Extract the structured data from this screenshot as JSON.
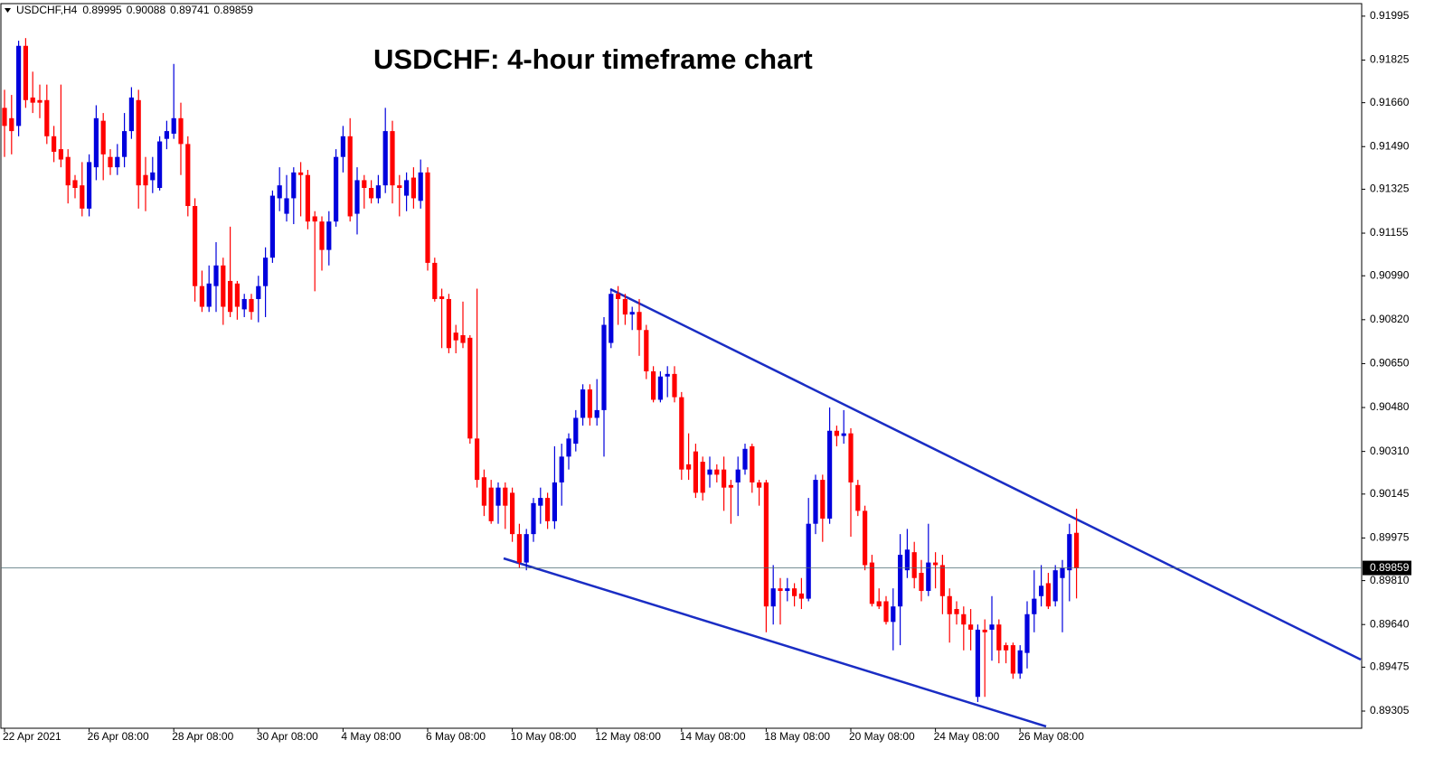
{
  "chart_data": {
    "type": "candlestick",
    "title": "USDCHF: 4-hour timeframe chart",
    "symbol": "USDCHF,H4",
    "up_color": "#0000dd",
    "down_color": "#ff0000",
    "ylim": [
      0.89242,
      0.9204
    ],
    "yticks": [
      0.91995,
      0.91825,
      {
        "value": 0.9166,
        "label": "0.91660"
      },
      {
        "value": 0.9149,
        "label": "0.91490"
      },
      0.91325,
      0.91155,
      {
        "value": 0.9099,
        "label": "0.90990"
      },
      {
        "value": 0.9082,
        "label": "0.90820"
      },
      {
        "value": 0.9065,
        "label": "0.90650"
      },
      {
        "value": 0.9048,
        "label": "0.90480"
      },
      {
        "value": 0.9031,
        "label": "0.90310"
      },
      0.90145,
      0.89975,
      {
        "value": 0.8981,
        "label": "0.89810"
      },
      {
        "value": 0.8964,
        "label": "0.89640"
      },
      0.89475,
      0.89305
    ],
    "categories": [
      "22 Apr 2021",
      null,
      null,
      null,
      null,
      null,
      null,
      null,
      null,
      null,
      null,
      null,
      "26 Apr 08:00",
      null,
      null,
      null,
      null,
      null,
      null,
      null,
      null,
      null,
      null,
      null,
      "28 Apr 08:00",
      null,
      null,
      null,
      null,
      null,
      null,
      null,
      null,
      null,
      null,
      null,
      "30 Apr 08:00",
      null,
      null,
      null,
      null,
      null,
      null,
      null,
      null,
      null,
      null,
      null,
      "4 May 08:00",
      null,
      null,
      null,
      null,
      null,
      null,
      null,
      null,
      null,
      null,
      null,
      "6 May 08:00",
      null,
      null,
      null,
      null,
      null,
      null,
      null,
      null,
      null,
      null,
      null,
      "10 May 08:00",
      null,
      null,
      null,
      null,
      null,
      null,
      null,
      null,
      null,
      null,
      null,
      "12 May 08:00",
      null,
      null,
      null,
      null,
      null,
      null,
      null,
      null,
      null,
      null,
      null,
      "14 May 08:00",
      null,
      null,
      null,
      null,
      null,
      null,
      null,
      null,
      null,
      null,
      null,
      "18 May 08:00",
      null,
      null,
      null,
      null,
      null,
      null,
      null,
      null,
      null,
      null,
      null,
      "20 May 08:00",
      null,
      null,
      null,
      null,
      null,
      null,
      null,
      null,
      null,
      null,
      null,
      "24 May 08:00",
      null,
      null,
      null,
      null,
      null,
      null,
      null,
      null,
      null,
      null,
      null,
      "26 May 08:00",
      null,
      null,
      null,
      null,
      null,
      null,
      null,
      null
    ],
    "ohlc": [
      [
        0.9164,
        0.9171,
        0.9145,
        0.9157
      ],
      [
        0.916,
        0.9169,
        0.9146,
        0.9155
      ],
      [
        0.9157,
        0.919,
        0.9153,
        0.9188
      ],
      [
        0.9188,
        0.9191,
        0.9164,
        0.9167
      ],
      [
        0.9168,
        0.9178,
        0.9162,
        0.9166
      ],
      [
        0.9167,
        0.9173,
        0.916,
        0.9166
      ],
      [
        0.9167,
        0.9173,
        0.915,
        0.9153
      ],
      [
        0.9153,
        0.9157,
        0.9143,
        0.9147
      ],
      [
        0.9148,
        0.9173,
        0.9141,
        0.9144
      ],
      [
        0.9145,
        0.9148,
        0.9127,
        0.9134
      ],
      [
        0.9136,
        0.9138,
        0.9129,
        0.9133
      ],
      [
        0.9134,
        0.9143,
        0.9122,
        0.9125
      ],
      [
        0.9125,
        0.9146,
        0.9122,
        0.9143
      ],
      [
        0.9141,
        0.9165,
        0.9136,
        0.916
      ],
      [
        0.9159,
        0.9162,
        0.9136,
        0.9146
      ],
      [
        0.9145,
        0.9148,
        0.9138,
        0.9141
      ],
      [
        0.9141,
        0.915,
        0.9138,
        0.9145
      ],
      [
        0.9145,
        0.9162,
        0.9141,
        0.9155
      ],
      [
        0.9155,
        0.9172,
        0.9152,
        0.9168
      ],
      [
        0.9167,
        0.9171,
        0.9125,
        0.9134
      ],
      [
        0.9138,
        0.9145,
        0.9124,
        0.9134
      ],
      [
        0.9136,
        0.9145,
        0.9131,
        0.9139
      ],
      [
        0.9133,
        0.9153,
        0.9132,
        0.9151
      ],
      [
        0.9152,
        0.9159,
        0.9148,
        0.9155
      ],
      [
        0.9154,
        0.9181,
        0.9152,
        0.916
      ],
      [
        0.916,
        0.9166,
        0.9138,
        0.915
      ],
      [
        0.915,
        0.9153,
        0.9122,
        0.9126
      ],
      [
        0.9126,
        0.9129,
        0.9089,
        0.9095
      ],
      [
        0.9095,
        0.9101,
        0.9085,
        0.9087
      ],
      [
        0.9087,
        0.9103,
        0.9085,
        0.9096
      ],
      [
        0.9095,
        0.9112,
        0.9085,
        0.9103
      ],
      [
        0.9103,
        0.9106,
        0.908,
        0.9087
      ],
      [
        0.9097,
        0.9118,
        0.9083,
        0.9085
      ],
      [
        0.9096,
        0.9097,
        0.9082,
        0.9087
      ],
      [
        0.9086,
        0.9092,
        0.9083,
        0.909
      ],
      [
        0.909,
        0.9092,
        0.9082,
        0.9085
      ],
      [
        0.909,
        0.9099,
        0.9081,
        0.9095
      ],
      [
        0.9095,
        0.911,
        0.9083,
        0.9106
      ],
      [
        0.9106,
        0.9132,
        0.9104,
        0.913
      ],
      [
        0.9129,
        0.9141,
        0.9124,
        0.9134
      ],
      [
        0.9123,
        0.9138,
        0.912,
        0.9129
      ],
      [
        0.9129,
        0.9141,
        0.9119,
        0.9139
      ],
      [
        0.9139,
        0.9143,
        0.9122,
        0.9138
      ],
      [
        0.9138,
        0.914,
        0.9117,
        0.912
      ],
      [
        0.9122,
        0.9124,
        0.9093,
        0.912
      ],
      [
        0.912,
        0.9122,
        0.9101,
        0.9109
      ],
      [
        0.9109,
        0.9124,
        0.9103,
        0.912
      ],
      [
        0.912,
        0.9148,
        0.9118,
        0.9145
      ],
      [
        0.9145,
        0.9157,
        0.9139,
        0.9153
      ],
      [
        0.9153,
        0.916,
        0.912,
        0.9122
      ],
      [
        0.9123,
        0.9141,
        0.9115,
        0.9136
      ],
      [
        0.9136,
        0.9138,
        0.9125,
        0.9133
      ],
      [
        0.9133,
        0.9136,
        0.9127,
        0.9129
      ],
      [
        0.9129,
        0.9138,
        0.9127,
        0.9134
      ],
      [
        0.9134,
        0.9164,
        0.9131,
        0.9155
      ],
      [
        0.9155,
        0.9159,
        0.9127,
        0.9134
      ],
      [
        0.9134,
        0.9138,
        0.9122,
        0.9133
      ],
      [
        0.913,
        0.9139,
        0.9124,
        0.9136
      ],
      [
        0.9137,
        0.9141,
        0.9125,
        0.9129
      ],
      [
        0.9128,
        0.9144,
        0.9125,
        0.9139
      ],
      [
        0.9139,
        0.9141,
        0.9101,
        0.9104
      ],
      [
        0.9104,
        0.9106,
        0.9089,
        0.909
      ],
      [
        0.9091,
        0.9094,
        0.9071,
        0.909
      ],
      [
        0.909,
        0.9092,
        0.9069,
        0.9071
      ],
      [
        0.9077,
        0.908,
        0.9069,
        0.9074
      ],
      [
        0.9076,
        0.9089,
        0.9071,
        0.9073
      ],
      [
        0.9075,
        0.9076,
        0.9034,
        0.9036
      ],
      [
        0.9036,
        0.9094,
        0.9017,
        0.902
      ],
      [
        0.9021,
        0.9024,
        0.9006,
        0.901
      ],
      [
        0.9017,
        0.902,
        0.9003,
        0.9004
      ],
      [
        0.901,
        0.9019,
        0.9003,
        0.9017
      ],
      [
        0.9017,
        0.9019,
        0.9001,
        0.901
      ],
      [
        0.9015,
        0.9017,
        0.8996,
        0.8999
      ],
      [
        0.8999,
        0.9003,
        0.8986,
        0.8988
      ],
      [
        0.8988,
        0.9001,
        0.8985,
        0.8999
      ],
      [
        0.8999,
        0.9013,
        0.8996,
        0.9011
      ],
      [
        0.901,
        0.9017,
        0.9003,
        0.9013
      ],
      [
        0.9013,
        0.9015,
        0.9001,
        0.9004
      ],
      [
        0.9004,
        0.9033,
        0.9001,
        0.9019
      ],
      [
        0.9019,
        0.9034,
        0.901,
        0.9029
      ],
      [
        0.9029,
        0.9038,
        0.9024,
        0.9036
      ],
      [
        0.9034,
        0.9047,
        0.9031,
        0.9044
      ],
      [
        0.9044,
        0.9057,
        0.9041,
        0.9055
      ],
      [
        0.9055,
        0.9057,
        0.9041,
        0.9044
      ],
      [
        0.9044,
        0.9059,
        0.9041,
        0.9047
      ],
      [
        0.9047,
        0.9083,
        0.9029,
        0.908
      ],
      [
        0.9073,
        0.9094,
        0.9071,
        0.9092
      ],
      [
        0.9092,
        0.9095,
        0.908,
        0.909
      ],
      [
        0.909,
        0.9092,
        0.908,
        0.9084
      ],
      [
        0.9084,
        0.9087,
        0.9078,
        0.9085
      ],
      [
        0.9085,
        0.909,
        0.9068,
        0.9078
      ],
      [
        0.9078,
        0.908,
        0.9059,
        0.9062
      ],
      [
        0.9062,
        0.9064,
        0.905,
        0.9051
      ],
      [
        0.9051,
        0.9062,
        0.905,
        0.906
      ],
      [
        0.906,
        0.9064,
        0.9052,
        0.9061
      ],
      [
        0.9061,
        0.9064,
        0.905,
        0.9052
      ],
      [
        0.9052,
        0.9054,
        0.902,
        0.9024
      ],
      [
        0.9026,
        0.9038,
        0.902,
        0.9024
      ],
      [
        0.9031,
        0.9034,
        0.9013,
        0.9015
      ],
      [
        0.9027,
        0.9029,
        0.9012,
        0.9015
      ],
      [
        0.9022,
        0.9029,
        0.9017,
        0.9024
      ],
      [
        0.9024,
        0.9026,
        0.9019,
        0.9022
      ],
      [
        0.9024,
        0.9029,
        0.9008,
        0.9017
      ],
      [
        0.9018,
        0.902,
        0.9003,
        0.9017
      ],
      [
        0.9019,
        0.9029,
        0.9006,
        0.9024
      ],
      [
        0.9024,
        0.9034,
        0.9022,
        0.9032
      ],
      [
        0.9033,
        0.9034,
        0.9015,
        0.9019
      ],
      [
        0.9019,
        0.902,
        0.901,
        0.9017
      ],
      [
        0.9019,
        0.902,
        0.8961,
        0.8971
      ],
      [
        0.8971,
        0.8987,
        0.8964,
        0.8978
      ],
      [
        0.8978,
        0.8982,
        0.8964,
        0.8977
      ],
      [
        0.8977,
        0.8982,
        0.8973,
        0.8978
      ],
      [
        0.8978,
        0.898,
        0.8971,
        0.8975
      ],
      [
        0.8976,
        0.8982,
        0.897,
        0.8974
      ],
      [
        0.8974,
        0.9013,
        0.8973,
        0.9003
      ],
      [
        0.9003,
        0.9022,
        0.8999,
        0.902
      ],
      [
        0.902,
        0.9022,
        0.8996,
        0.9005
      ],
      [
        0.9005,
        0.9048,
        0.9003,
        0.9039
      ],
      [
        0.9039,
        0.9041,
        0.9033,
        0.9037
      ],
      [
        0.9037,
        0.9047,
        0.9034,
        0.9038
      ],
      [
        0.9038,
        0.904,
        0.8998,
        0.9019
      ],
      [
        0.9018,
        0.902,
        0.9006,
        0.9008
      ],
      [
        0.9008,
        0.901,
        0.8985,
        0.8987
      ],
      [
        0.8988,
        0.8991,
        0.8971,
        0.8972
      ],
      [
        0.8973,
        0.8978,
        0.897,
        0.8971
      ],
      [
        0.8973,
        0.8975,
        0.8964,
        0.8965
      ],
      [
        0.8965,
        0.8978,
        0.8954,
        0.8971
      ],
      [
        0.8971,
        0.8999,
        0.8956,
        0.8991
      ],
      [
        0.8985,
        0.9001,
        0.8982,
        0.8993
      ],
      [
        0.8992,
        0.8996,
        0.8978,
        0.8982
      ],
      [
        0.8984,
        0.8989,
        0.8973,
        0.8977
      ],
      [
        0.8977,
        0.9003,
        0.8975,
        0.8988
      ],
      [
        0.8988,
        0.8992,
        0.8978,
        0.8987
      ],
      [
        0.8987,
        0.8991,
        0.8968,
        0.8975
      ],
      [
        0.8975,
        0.8978,
        0.8957,
        0.8968
      ],
      [
        0.897,
        0.8973,
        0.8964,
        0.8968
      ],
      [
        0.8968,
        0.8971,
        0.8954,
        0.8964
      ],
      [
        0.8964,
        0.897,
        0.8954,
        0.8962
      ],
      [
        0.8936,
        0.8964,
        0.8934,
        0.8962
      ],
      [
        0.8962,
        0.8966,
        0.8936,
        0.8961
      ],
      [
        0.8962,
        0.8975,
        0.895,
        0.8964
      ],
      [
        0.8964,
        0.8966,
        0.8949,
        0.8954
      ],
      [
        0.8956,
        0.8957,
        0.8949,
        0.8954
      ],
      [
        0.8956,
        0.8957,
        0.8943,
        0.8945
      ],
      [
        0.8945,
        0.8956,
        0.8943,
        0.8954
      ],
      [
        0.8953,
        0.8973,
        0.8947,
        0.8968
      ],
      [
        0.8968,
        0.8985,
        0.8961,
        0.8974
      ],
      [
        0.8975,
        0.8987,
        0.8971,
        0.8979
      ],
      [
        0.898,
        0.8984,
        0.897,
        0.8971
      ],
      [
        0.8973,
        0.8987,
        0.8971,
        0.8985
      ],
      [
        0.8982,
        0.8989,
        0.8961,
        0.8986
      ],
      [
        0.8985,
        0.9003,
        0.8973,
        0.8999
      ],
      [
        0.89995,
        0.90088,
        0.89741,
        0.89859
      ]
    ]
  }
}
